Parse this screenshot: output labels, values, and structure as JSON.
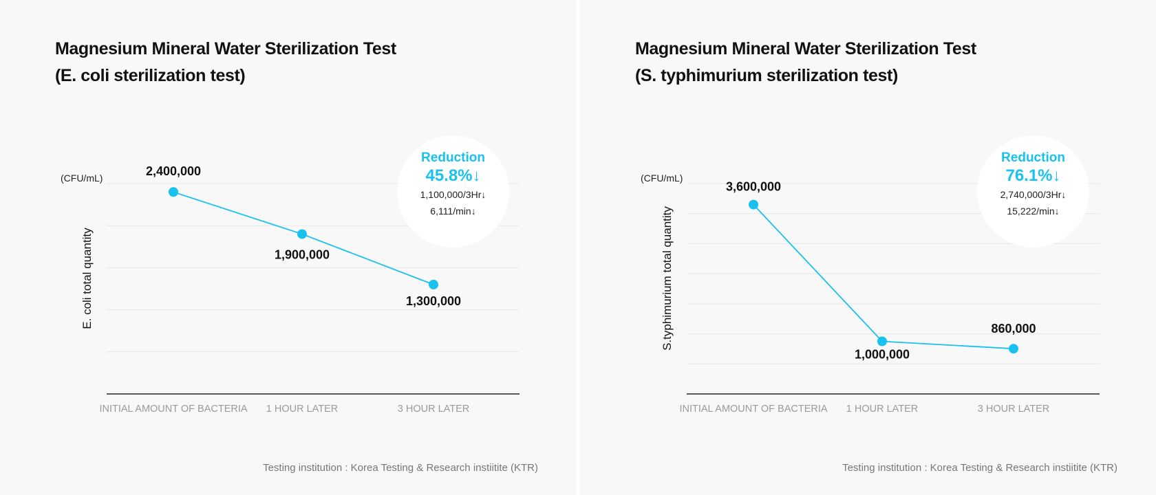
{
  "accent_color": "#19c2ee",
  "chart_data": [
    {
      "type": "line",
      "title_line1": "Magnesium Mineral Water Sterilization Test",
      "title_line2": "(E. coli sterilization test)",
      "unit": "(CFU/mL)",
      "ylabel": "E. coli total quantity",
      "xlabel": "",
      "categories": [
        "INITIAL AMOUNT OF BACTERIA",
        "1 HOUR LATER",
        "3 HOUR LATER"
      ],
      "values": [
        2400000,
        1900000,
        1300000
      ],
      "value_labels": [
        "2,400,000",
        "1,900,000",
        "1,300,000"
      ],
      "ylim": [
        0,
        2500000
      ],
      "grid": true,
      "reduction": {
        "label": "Reduction",
        "percent": "45.8%↓",
        "line1": "1,100,000/3Hr↓",
        "line2": "6,111/min↓"
      },
      "source": "Testing institution : Korea Testing & Research instiitite (KTR)"
    },
    {
      "type": "line",
      "title_line1": "Magnesium Mineral Water Sterilization Test",
      "title_line2": "(S. typhimurium sterilization test)",
      "unit": "(CFU/mL)",
      "ylabel": "S.typhimurium total quantity",
      "xlabel": "",
      "categories": [
        "INITIAL AMOUNT OF BACTERIA",
        "1 HOUR LATER",
        "3 HOUR LATER"
      ],
      "values": [
        3600000,
        1000000,
        860000
      ],
      "value_labels": [
        "3,600,000",
        "1,000,000",
        "860,000"
      ],
      "ylim": [
        0,
        4000000
      ],
      "grid": true,
      "reduction": {
        "label": "Reduction",
        "percent": "76.1%↓",
        "line1": "2,740,000/3Hr↓",
        "line2": "15,222/min↓"
      },
      "source": "Testing institution : Korea Testing & Research instiitite (KTR)"
    }
  ]
}
